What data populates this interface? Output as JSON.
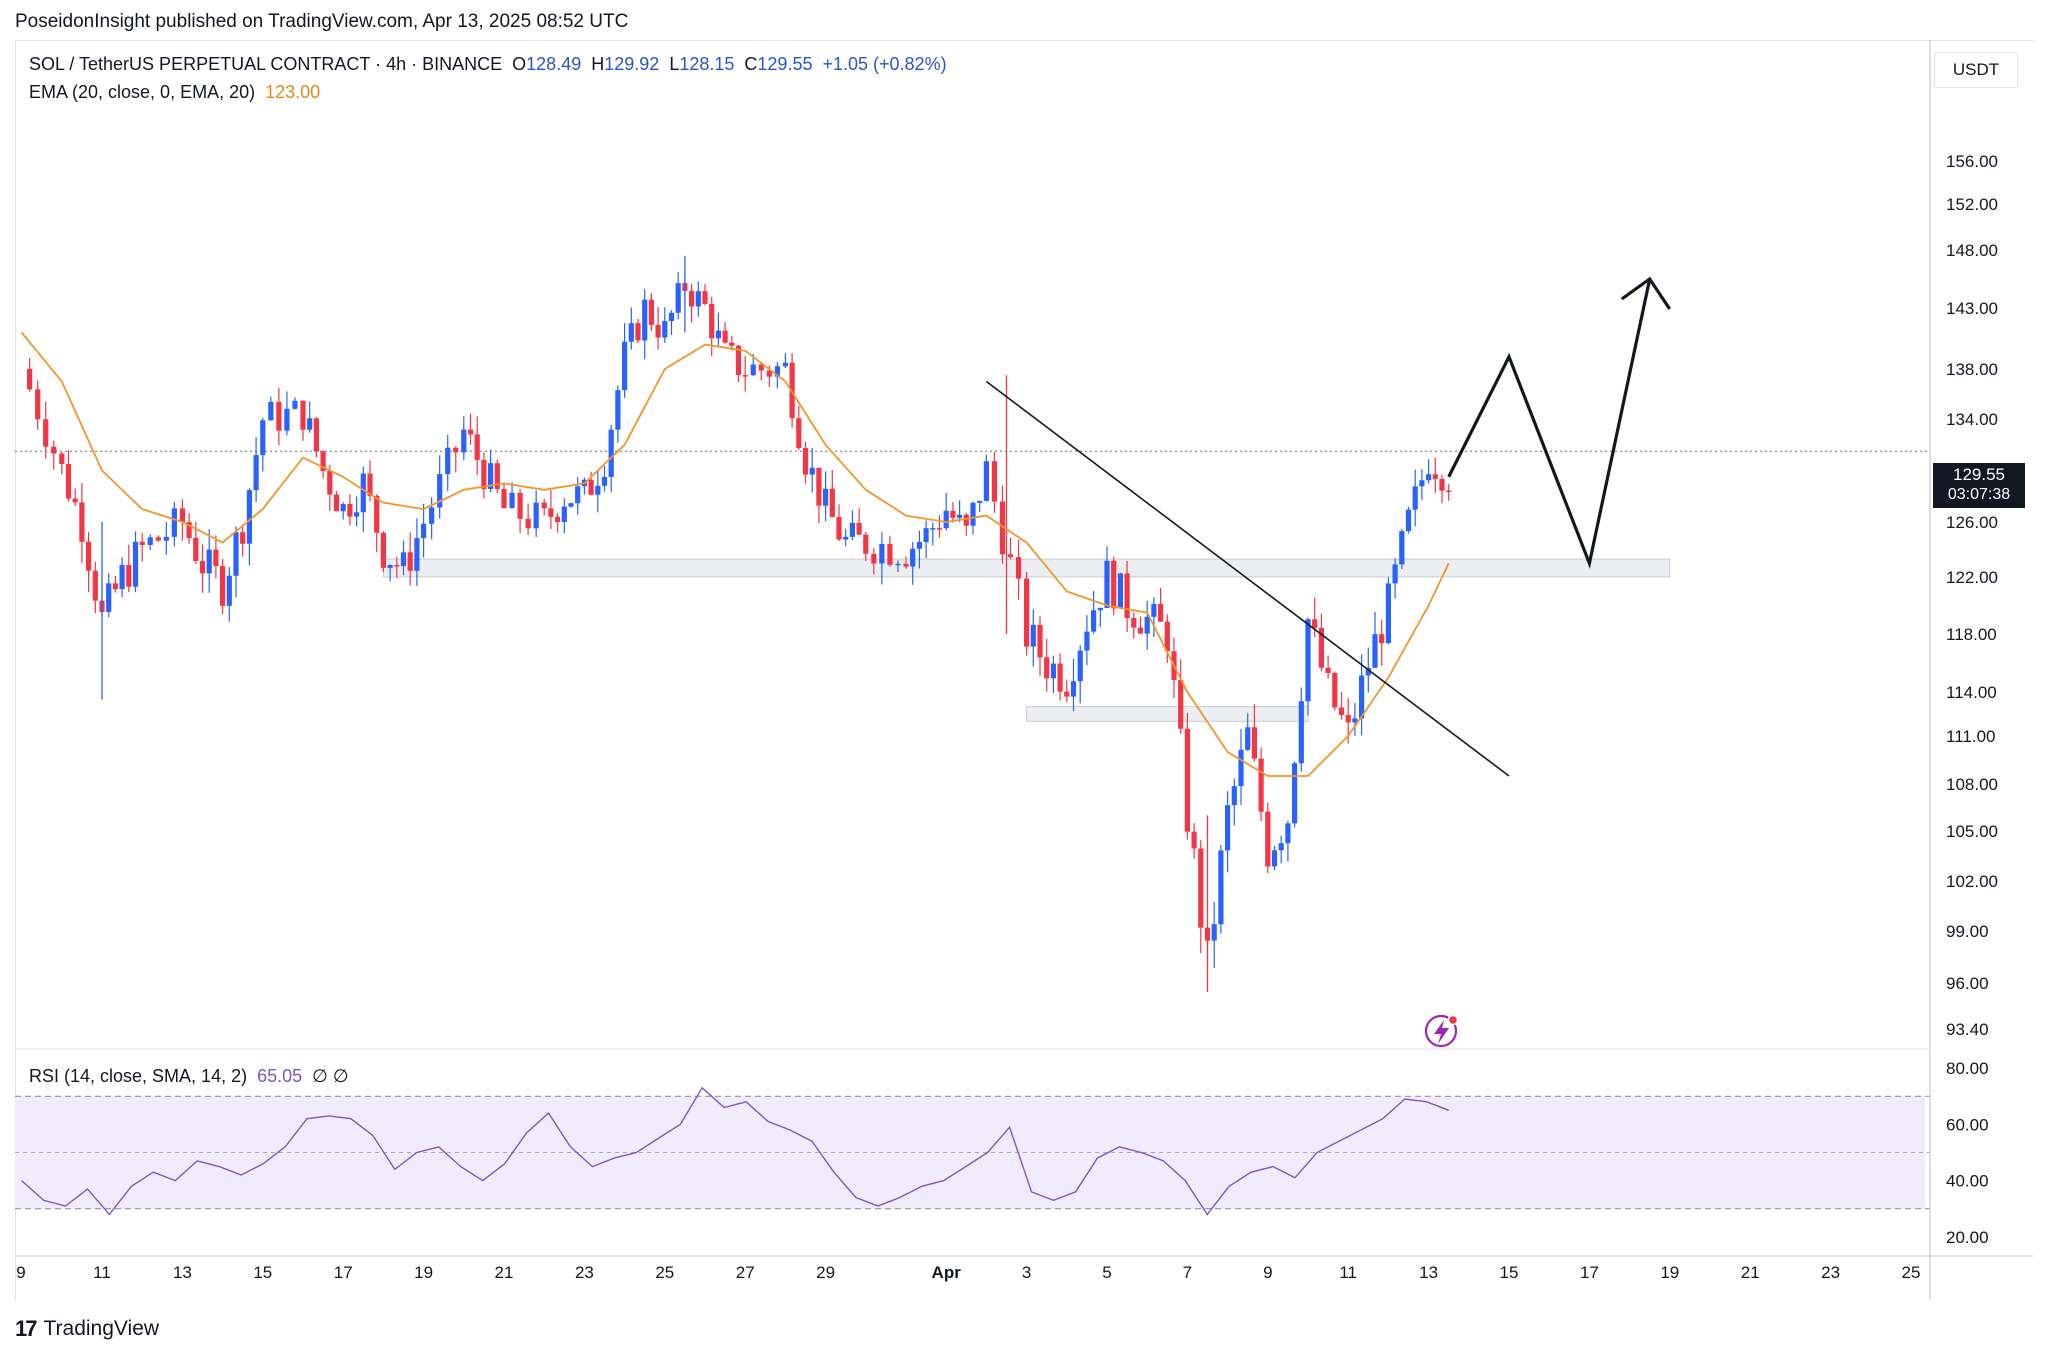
{
  "header": {
    "text": "PoseidonInsight published on TradingView.com, Apr 13, 2025 08:52 UTC"
  },
  "legend": {
    "symbol": "SOL / TetherUS PERPETUAL CONTRACT · 4h · BINANCE",
    "o_label": "O",
    "o": "128.49",
    "h_label": "H",
    "h": "129.92",
    "l_label": "L",
    "l": "128.15",
    "c_label": "C",
    "c": "129.55",
    "change": "+1.05 (+0.82%)",
    "ema_label": "EMA (20, close, 0, EMA, 20)",
    "ema_value": "123.00",
    "rsi_label": "RSI (14, close, SMA, 14, 2)",
    "rsi_value": "65.05",
    "rsi_extra": "∅  ∅"
  },
  "currency": "USDT",
  "price_tag": {
    "price": "129.55",
    "countdown": "03:07:38"
  },
  "footer": {
    "logo": "17",
    "brand": "TradingView"
  },
  "colors": {
    "up": "#2962ff",
    "down": "#f23645",
    "ema": "#f0962d",
    "rsi": "#7e57c2",
    "zone_fill": "#eceef2",
    "rsi_band": "#f1ecfb"
  },
  "chart_data": [
    {
      "type": "candlestick",
      "title": "SOL / TetherUS PERPETUAL CONTRACT · 4h · BINANCE",
      "y_ticks": [
        "156.00",
        "152.00",
        "148.00",
        "143.00",
        "138.00",
        "134.00",
        "126.00",
        "122.00",
        "118.00",
        "114.00",
        "111.00",
        "108.00",
        "105.00",
        "102.00",
        "99.00",
        "96.00",
        "93.40"
      ],
      "x_ticks": [
        "9",
        "11",
        "13",
        "15",
        "17",
        "19",
        "21",
        "23",
        "25",
        "27",
        "29",
        "Apr",
        "3",
        "5",
        "7",
        "9",
        "11",
        "13",
        "15",
        "17",
        "19",
        "21",
        "23",
        "25"
      ],
      "ylim": [
        93.4,
        160
      ],
      "close_path": [
        {
          "date": "Mar 9",
          "price": 138.0
        },
        {
          "date": "Mar 10",
          "price": 130.0
        },
        {
          "date": "Mar 10 pm",
          "price": 126.0
        },
        {
          "date": "Mar 11",
          "price": 119.0
        },
        {
          "date": "Mar 11 pm",
          "price": 122.0
        },
        {
          "date": "Mar 12",
          "price": 124.0
        },
        {
          "date": "Mar 13",
          "price": 126.0
        },
        {
          "date": "Mar 13 pm",
          "price": 123.0
        },
        {
          "date": "Mar 14",
          "price": 121.5
        },
        {
          "date": "Mar 14 pm",
          "price": 126.0
        },
        {
          "date": "Mar 15",
          "price": 134.0
        },
        {
          "date": "Mar 16",
          "price": 134.5
        },
        {
          "date": "Mar 16 pm",
          "price": 130.0
        },
        {
          "date": "Mar 17",
          "price": 127.0
        },
        {
          "date": "Mar 17 pm",
          "price": 129.0
        },
        {
          "date": "Mar 18",
          "price": 124.0
        },
        {
          "date": "Mar 18 pm",
          "price": 122.5
        },
        {
          "date": "Mar 19",
          "price": 126.0
        },
        {
          "date": "Mar 20",
          "price": 133.0
        },
        {
          "date": "Mar 20 pm",
          "price": 130.0
        },
        {
          "date": "Mar 21",
          "price": 127.0
        },
        {
          "date": "Mar 22",
          "price": 126.0
        },
        {
          "date": "Mar 22 pm",
          "price": 128.0
        },
        {
          "date": "Mar 23",
          "price": 128.0
        },
        {
          "date": "Mar 23 pm",
          "price": 131.0
        },
        {
          "date": "Mar 24",
          "price": 139.0
        },
        {
          "date": "Mar 24 pm",
          "price": 143.0
        },
        {
          "date": "Mar 25",
          "price": 141.0
        },
        {
          "date": "Mar 25 pm",
          "price": 145.0
        },
        {
          "date": "Mar 26",
          "price": 143.0
        },
        {
          "date": "Mar 26 pm",
          "price": 139.0
        },
        {
          "date": "Mar 27",
          "price": 138.0
        },
        {
          "date": "Mar 28",
          "price": 138.0
        },
        {
          "date": "Mar 28 pm",
          "price": 131.0
        },
        {
          "date": "Mar 29",
          "price": 127.0
        },
        {
          "date": "Mar 29 pm",
          "price": 124.5
        },
        {
          "date": "Mar 30",
          "price": 124.5
        },
        {
          "date": "Mar 31",
          "price": 124.0
        },
        {
          "date": "Mar 31 pm",
          "price": 125.0
        },
        {
          "date": "Apr 1",
          "price": 127.0
        },
        {
          "date": "Apr 1 pm",
          "price": 125.0
        },
        {
          "date": "Apr 2",
          "price": 130.0
        },
        {
          "date": "Apr 3",
          "price": 118.0
        },
        {
          "date": "Apr 3 pm",
          "price": 116.0
        },
        {
          "date": "Apr 4",
          "price": 115.0
        },
        {
          "date": "Apr 4 pm",
          "price": 119.0
        },
        {
          "date": "Apr 5",
          "price": 122.0
        },
        {
          "date": "Apr 5 pm",
          "price": 120.0
        },
        {
          "date": "Apr 6",
          "price": 119.0
        },
        {
          "date": "Apr 6 pm",
          "price": 118.0
        },
        {
          "date": "Apr 7",
          "price": 106.0
        },
        {
          "date": "Apr 7 pm",
          "price": 97.0
        },
        {
          "date": "Apr 8",
          "price": 106.0
        },
        {
          "date": "Apr 8 pm",
          "price": 111.0
        },
        {
          "date": "Apr 9",
          "price": 104.0
        },
        {
          "date": "Apr 9 pm",
          "price": 106.0
        },
        {
          "date": "Apr 10",
          "price": 119.0
        },
        {
          "date": "Apr 10 pm",
          "price": 114.0
        },
        {
          "date": "Apr 11",
          "price": 111.0
        },
        {
          "date": "Apr 11 pm",
          "price": 116.0
        },
        {
          "date": "Apr 12",
          "price": 120.0
        },
        {
          "date": "Apr 12 pm",
          "price": 126.0
        },
        {
          "date": "Apr 13",
          "price": 131.0
        },
        {
          "date": "Apr 13 pm",
          "price": 129.55
        }
      ],
      "ema_path": [
        {
          "date": "Mar 9",
          "price": 141.0
        },
        {
          "date": "Mar 10",
          "price": 137.0
        },
        {
          "date": "Mar 11",
          "price": 130.0
        },
        {
          "date": "Mar 12",
          "price": 127.0
        },
        {
          "date": "Mar 13",
          "price": 126.0
        },
        {
          "date": "Mar 14",
          "price": 124.5
        },
        {
          "date": "Mar 15",
          "price": 127.0
        },
        {
          "date": "Mar 16",
          "price": 131.0
        },
        {
          "date": "Mar 17",
          "price": 129.5
        },
        {
          "date": "Mar 18",
          "price": 127.5
        },
        {
          "date": "Mar 19",
          "price": 127.0
        },
        {
          "date": "Mar 20",
          "price": 128.5
        },
        {
          "date": "Mar 21",
          "price": 129.0
        },
        {
          "date": "Mar 22",
          "price": 128.5
        },
        {
          "date": "Mar 23",
          "price": 129.0
        },
        {
          "date": "Mar 24",
          "price": 132.0
        },
        {
          "date": "Mar 25",
          "price": 138.0
        },
        {
          "date": "Mar 26",
          "price": 140.0
        },
        {
          "date": "Mar 27",
          "price": 139.5
        },
        {
          "date": "Mar 28",
          "price": 137.0
        },
        {
          "date": "Mar 29",
          "price": 132.0
        },
        {
          "date": "Mar 30",
          "price": 128.5
        },
        {
          "date": "Mar 31",
          "price": 126.5
        },
        {
          "date": "Apr 1",
          "price": 126.0
        },
        {
          "date": "Apr 2",
          "price": 126.5
        },
        {
          "date": "Apr 3",
          "price": 124.5
        },
        {
          "date": "Apr 4",
          "price": 121.0
        },
        {
          "date": "Apr 5",
          "price": 120.0
        },
        {
          "date": "Apr 6",
          "price": 119.5
        },
        {
          "date": "Apr 7",
          "price": 114.0
        },
        {
          "date": "Apr 8",
          "price": 110.0
        },
        {
          "date": "Apr 9",
          "price": 108.5
        },
        {
          "date": "Apr 10",
          "price": 108.5
        },
        {
          "date": "Apr 11",
          "price": 111.0
        },
        {
          "date": "Apr 12",
          "price": 115.0
        },
        {
          "date": "Apr 13",
          "price": 120.0
        },
        {
          "date": "Apr 13 pm",
          "price": 123.0
        }
      ],
      "annotations": {
        "support_zone": {
          "from": "Mar 18",
          "to": "Apr 19",
          "low": 122.0,
          "high": 123.3
        },
        "demand_zone": {
          "from": "Apr 3",
          "to": "Apr 10",
          "low": 112.0,
          "high": 113.0
        },
        "trendline": [
          {
            "date": "Apr 2",
            "price": 137.0
          },
          {
            "date": "Apr 15",
            "price": 108.5
          }
        ],
        "projection": [
          {
            "date": "Apr 13 pm",
            "price": 129.5
          },
          {
            "date": "Apr 15",
            "price": 139.0
          },
          {
            "date": "Apr 17",
            "price": 123.0
          },
          {
            "date": "Apr 18 pm",
            "price": 145.5
          }
        ],
        "last_price_line": 131.5
      }
    },
    {
      "type": "line",
      "title": "RSI (14, close, SMA, 14, 2)",
      "y_ticks": [
        "80.00",
        "60.00",
        "40.00",
        "20.00"
      ],
      "ylim": [
        15,
        85
      ],
      "bands": [
        30,
        50,
        70
      ],
      "series": [
        {
          "values": [
            40,
            33,
            31,
            37,
            28,
            38,
            43,
            40,
            47,
            45,
            42,
            46,
            52,
            62,
            63,
            62,
            56,
            44,
            50,
            52,
            45,
            40,
            46,
            57,
            64,
            52,
            45,
            48,
            50,
            55,
            60,
            73,
            66,
            68,
            61,
            58,
            54,
            43,
            34,
            31,
            34,
            38,
            40,
            45,
            50,
            59,
            36,
            33,
            36,
            48,
            52,
            50,
            47,
            40,
            28,
            38,
            43,
            45,
            41,
            50,
            54,
            58,
            62,
            69,
            68,
            65
          ]
        }
      ]
    }
  ]
}
